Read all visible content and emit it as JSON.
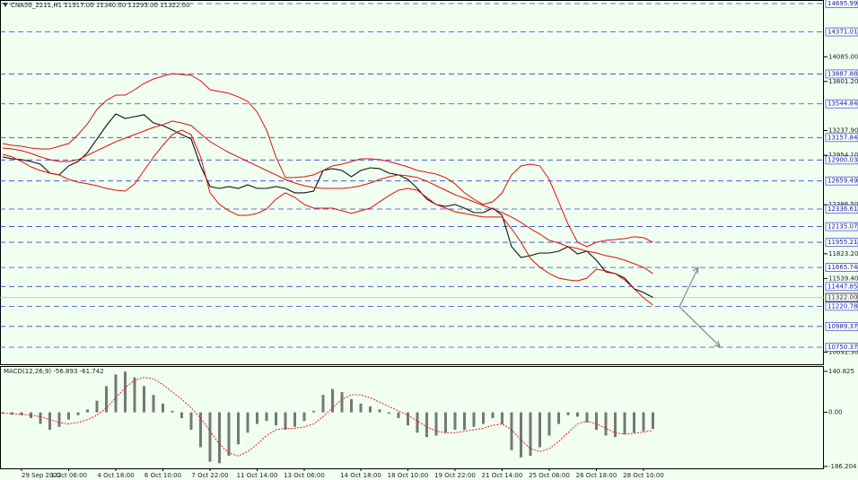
{
  "chart_data": {
    "type": "line",
    "header": "CNA50_2211,H1  11317.00 11340.00 11293.00 11322.00",
    "ylim": [
      10565,
      14737
    ],
    "yticks": [
      {
        "value": 14085,
        "label": "14085.00"
      },
      {
        "value": 13801.2,
        "label": "13801.20"
      },
      {
        "value": 13237.9,
        "label": "13237.90"
      },
      {
        "value": 12954.1,
        "label": "12954.10"
      },
      {
        "value": 12386.5,
        "label": "12386.50"
      },
      {
        "value": 11823.2,
        "label": "11823.20"
      },
      {
        "value": 11539.4,
        "label": "11539.40"
      },
      {
        "value": 10692.3,
        "label": "10692.30"
      }
    ],
    "levels": [
      {
        "value": 14695.99,
        "label": "14695.99"
      },
      {
        "value": 14371.01,
        "label": "14371.01"
      },
      {
        "value": 13887.88,
        "label": "13887.88"
      },
      {
        "value": 13544.84,
        "label": "13544.84"
      },
      {
        "value": 13157.84,
        "label": "13157.84"
      },
      {
        "value": 12900.03,
        "label": "12900.03"
      },
      {
        "value": 12659.49,
        "label": "12659.49"
      },
      {
        "value": 12336.61,
        "label": "12336.61"
      },
      {
        "value": 12135.07,
        "label": "12135.07"
      },
      {
        "value": 11955.21,
        "label": "11955.21"
      },
      {
        "value": 11665.74,
        "label": "11665.74"
      },
      {
        "value": 11447.85,
        "label": "11447.85"
      },
      {
        "value": 11220.78,
        "label": "11220.78"
      },
      {
        "value": 10989.37,
        "label": "10989.37"
      },
      {
        "value": 10750.37,
        "label": "10750.37"
      }
    ],
    "level_color": "#3344cc",
    "current_price": {
      "value": 11322,
      "label": "11322.00"
    },
    "xticks": [
      {
        "value": 2,
        "label": "29 Sep 2022"
      },
      {
        "value": 7,
        "label": "3 Oct 06:00"
      },
      {
        "value": 12,
        "label": "4 Oct 18:00"
      },
      {
        "value": 17,
        "label": "6 Oct 10:00"
      },
      {
        "value": 22,
        "label": "7 Oct 22:00"
      },
      {
        "value": 27,
        "label": "11 Oct 14:00"
      },
      {
        "value": 32,
        "label": "13 Oct 06:00"
      },
      {
        "value": 38,
        "label": "14 Oct 18:00"
      },
      {
        "value": 43,
        "label": "18 Oct 10:00"
      },
      {
        "value": 48,
        "label": "19 Oct 22:00"
      },
      {
        "value": 53,
        "label": "21 Oct 14:00"
      },
      {
        "value": 58,
        "label": "25 Oct 06:00"
      },
      {
        "value": 63,
        "label": "26 Oct 18:00"
      },
      {
        "value": 68,
        "label": "28 Oct 10:00"
      }
    ],
    "series": [
      {
        "color": "#111111",
        "values": [
          12935,
          12914,
          12904,
          12883,
          12852,
          12749,
          12729,
          12832,
          12883,
          12986,
          13141,
          13295,
          13429,
          13377,
          13398,
          13419,
          13326,
          13295,
          13244,
          13192,
          13141,
          12832,
          12595,
          12574,
          12595,
          12574,
          12615,
          12574,
          12574,
          12595,
          12574,
          12523,
          12523,
          12543,
          12780,
          12801,
          12780,
          12708,
          12780,
          12811,
          12801,
          12749,
          12729,
          12677,
          12574,
          12450,
          12389,
          12368,
          12389,
          12347,
          12296,
          12296,
          12347,
          12265,
          11905,
          11781,
          11802,
          11832,
          11832,
          11853,
          11905,
          11822,
          11853,
          11750,
          11616,
          11596,
          11544,
          11421,
          11379,
          11322
        ]
      },
      {
        "color": "#e01010",
        "values": [
          13089,
          13068,
          13058,
          13037,
          13027,
          13027,
          13058,
          13089,
          13192,
          13316,
          13480,
          13583,
          13645,
          13645,
          13707,
          13779,
          13831,
          13862,
          13892,
          13882,
          13872,
          13810,
          13707,
          13686,
          13666,
          13625,
          13573,
          13450,
          13244,
          12935,
          12698,
          12698,
          12708,
          12729,
          12780,
          12832,
          12852,
          12883,
          12914,
          12914,
          12904,
          12883,
          12852,
          12821,
          12780,
          12759,
          12739,
          12698,
          12626,
          12523,
          12450,
          12389,
          12420,
          12523,
          12729,
          12832,
          12852,
          12832,
          12677,
          12420,
          12162,
          11956,
          11905,
          11956,
          11977,
          11987,
          11997,
          12018,
          12008,
          11956
        ]
      },
      {
        "color": "#e01010",
        "values": [
          13037,
          13027,
          13007,
          12976,
          12935,
          12904,
          12883,
          12883,
          12904,
          12955,
          13007,
          13058,
          13110,
          13151,
          13192,
          13233,
          13274,
          13305,
          13347,
          13326,
          13295,
          13202,
          13110,
          13048,
          12986,
          12935,
          12883,
          12832,
          12780,
          12729,
          12677,
          12636,
          12605,
          12584,
          12574,
          12574,
          12574,
          12584,
          12605,
          12636,
          12677,
          12708,
          12729,
          12718,
          12698,
          12657,
          12605,
          12553,
          12502,
          12461,
          12420,
          12378,
          12337,
          12296,
          12245,
          12183,
          12111,
          12049,
          11977,
          11946,
          11905,
          11884,
          11853,
          11833,
          11802,
          11781,
          11750,
          11709,
          11668,
          11596
        ]
      },
      {
        "color": "#e01010",
        "values": [
          12965,
          12935,
          12883,
          12821,
          12780,
          12749,
          12729,
          12677,
          12646,
          12626,
          12605,
          12574,
          12553,
          12543,
          12626,
          12780,
          12935,
          13068,
          13192,
          13244,
          13192,
          12935,
          12523,
          12389,
          12317,
          12265,
          12265,
          12286,
          12337,
          12450,
          12523,
          12471,
          12389,
          12347,
          12347,
          12347,
          12317,
          12286,
          12317,
          12347,
          12420,
          12492,
          12553,
          12574,
          12553,
          12471,
          12389,
          12347,
          12306,
          12286,
          12265,
          12245,
          12245,
          12245,
          12111,
          11956,
          11771,
          11668,
          11596,
          11544,
          11523,
          11513,
          11544,
          11647,
          11626,
          11596,
          11523,
          11421,
          11318,
          11235
        ]
      }
    ],
    "macd": {
      "title": "MACD(12,26,9) -56.893 -61.742",
      "ylim": [
        -208,
        156
      ],
      "yticks": [
        {
          "value": 140.825,
          "label": "140.825"
        },
        {
          "value": 0,
          "label": "0.00"
        },
        {
          "value": -186.204,
          "label": "-186.204"
        }
      ],
      "histogram_color": "#777777",
      "signal_color": "#e01010",
      "histogram": [
        -5,
        -8,
        -10,
        -20,
        -40,
        -60,
        -50,
        -25,
        -10,
        10,
        40,
        90,
        130,
        140,
        120,
        90,
        60,
        30,
        5,
        -20,
        -60,
        -120,
        -170,
        -175,
        -150,
        -110,
        -70,
        -40,
        -30,
        -45,
        -60,
        -50,
        -30,
        5,
        60,
        80,
        70,
        45,
        30,
        20,
        10,
        -5,
        -20,
        -45,
        -70,
        -85,
        -80,
        -70,
        -60,
        -60,
        -50,
        -40,
        -20,
        -40,
        -130,
        -155,
        -150,
        -120,
        -80,
        -40,
        -10,
        -15,
        -35,
        -60,
        -80,
        -85,
        -75,
        -70,
        -65,
        -57
      ],
      "signal": [
        -3,
        -5,
        -7,
        -10,
        -15,
        -25,
        -35,
        -40,
        -35,
        -25,
        -10,
        15,
        50,
        85,
        110,
        120,
        115,
        95,
        70,
        45,
        15,
        -20,
        -65,
        -110,
        -140,
        -150,
        -135,
        -110,
        -80,
        -60,
        -55,
        -55,
        -50,
        -40,
        -15,
        15,
        45,
        60,
        60,
        50,
        35,
        20,
        5,
        -10,
        -30,
        -50,
        -65,
        -70,
        -70,
        -65,
        -60,
        -55,
        -45,
        -40,
        -60,
        -95,
        -125,
        -135,
        -125,
        -100,
        -70,
        -40,
        -30,
        -40,
        -55,
        -70,
        -75,
        -72,
        -68,
        -62
      ]
    }
  }
}
